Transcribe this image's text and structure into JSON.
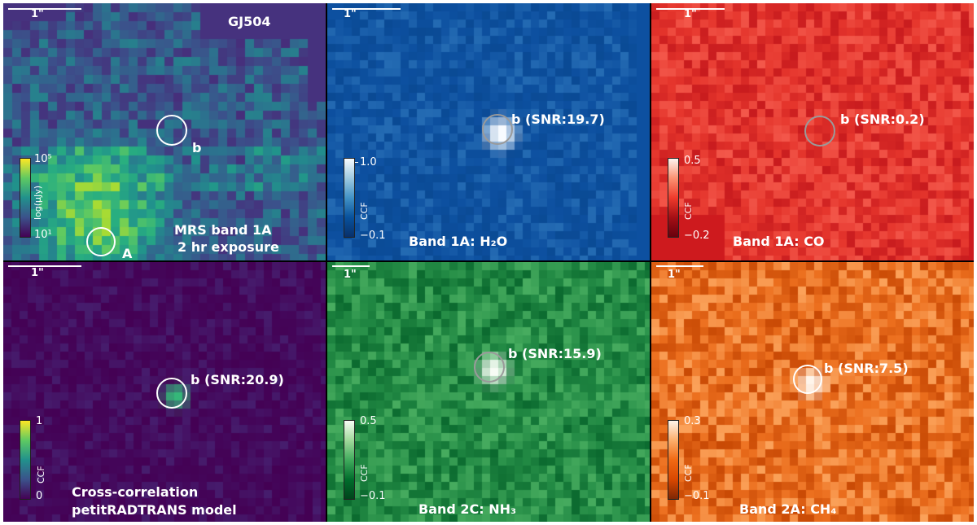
{
  "scale_label": "1\"",
  "panels": {
    "p1": {
      "target": "GJ504",
      "companion": "b",
      "star": "A",
      "line1": "MRS band 1A",
      "line2": "2 hr exposure",
      "cbar_top": "10⁵",
      "cbar_bottom": "10¹",
      "cbar_name": "log(μJy)",
      "colors": {
        "base": "#46327e",
        "accent": "#c8e020"
      }
    },
    "p2": {
      "label": "Band 1A: H₂O",
      "annotation": "b (SNR:19.7)",
      "snr": 19.7,
      "cbar_top": "1.0",
      "cbar_bottom": "−0.1",
      "cbar_name": "CCF",
      "colors": {
        "base": "#0d50a0",
        "peak": "#f7fbff"
      }
    },
    "p3": {
      "label": "Band 1A: CO",
      "annotation": "b (SNR:0.2)",
      "snr": 0.2,
      "cbar_top": "0.5",
      "cbar_bottom": "−0.2",
      "cbar_name": "CCF",
      "colors": {
        "base": "#ce1a1e",
        "light": "#f3574a"
      }
    },
    "p4": {
      "label_line1": "Cross-correlation",
      "label_line2": "petitRADTRANS model",
      "annotation": "b (SNR:20.9)",
      "snr": 20.9,
      "cbar_top": "1",
      "cbar_bottom": "0",
      "cbar_name": "CCF",
      "colors": {
        "base": "#440154",
        "peak": "#35b779"
      }
    },
    "p5": {
      "label": "Band 2C: NH₃",
      "annotation": "b (SNR:15.9)",
      "snr": 15.9,
      "cbar_top": "0.5",
      "cbar_bottom": "−0.1",
      "cbar_name": "CCF",
      "colors": {
        "base": "#1f8a3f",
        "peak": "#f7fcf5"
      }
    },
    "p6": {
      "label": "Band 2A: CH₄",
      "annotation": "b (SNR:7.5)",
      "snr": 7.5,
      "cbar_top": "0.3",
      "cbar_bottom": "−0.1",
      "cbar_name": "CCF",
      "colors": {
        "base": "#e35b0b",
        "peak": "#fff5eb"
      }
    }
  }
}
